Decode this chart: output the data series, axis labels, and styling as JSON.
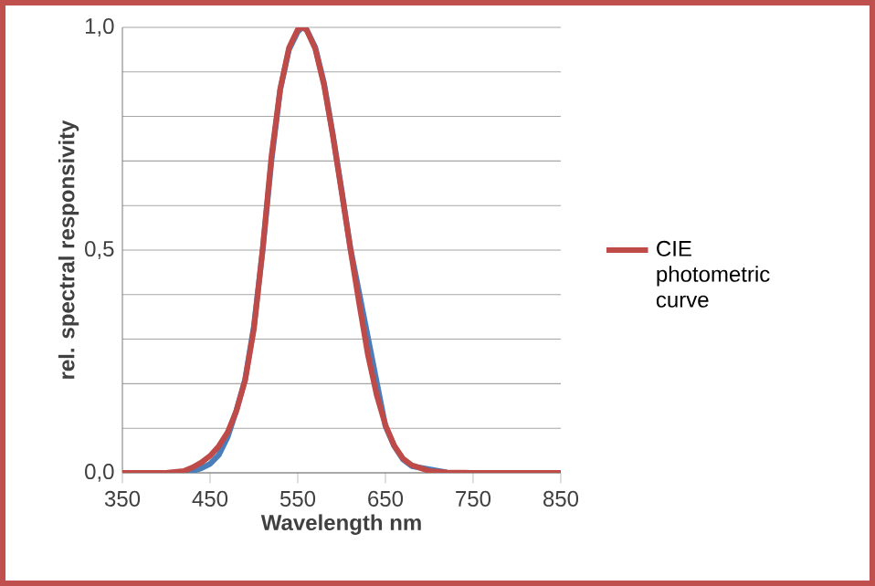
{
  "chart_data": {
    "type": "line",
    "xlabel": "Wavelength nm",
    "ylabel": "rel. spectral responsivity",
    "xlim": [
      350,
      850
    ],
    "xticks": [
      350,
      450,
      550,
      650,
      750,
      850
    ],
    "ylim": [
      0,
      1
    ],
    "yticks": [
      {
        "value": 0,
        "label": "0,0"
      },
      {
        "value": 0.1,
        "label": null
      },
      {
        "value": 0.2,
        "label": null
      },
      {
        "value": 0.3,
        "label": null
      },
      {
        "value": 0.4,
        "label": null
      },
      {
        "value": 0.5,
        "label": "0,5"
      },
      {
        "value": 0.6,
        "label": null
      },
      {
        "value": 0.7,
        "label": null
      },
      {
        "value": 0.8,
        "label": null
      },
      {
        "value": 0.9,
        "label": null
      },
      {
        "value": 1,
        "label": "1,0"
      }
    ],
    "grid": "y",
    "legend": "right",
    "marker": "none",
    "line_style": "solid",
    "series": [
      {
        "color": "#4a7ebb",
        "x": [
          350,
          400,
          420,
          430,
          440,
          450,
          460,
          470,
          480,
          490,
          500,
          510,
          520,
          530,
          540,
          550,
          555,
          560,
          570,
          580,
          590,
          600,
          610,
          620,
          630,
          640,
          650,
          660,
          670,
          680,
          700,
          720
        ],
        "values": [
          0,
          0,
          0.001,
          0.004,
          0.01,
          0.02,
          0.04,
          0.08,
          0.14,
          0.21,
          0.33,
          0.5,
          0.7,
          0.86,
          0.95,
          0.99,
          1.0,
          0.995,
          0.955,
          0.875,
          0.76,
          0.635,
          0.505,
          null,
          null,
          null,
          0.105,
          0.06,
          0.03,
          0.015,
          null,
          0.001
        ]
      },
      {
        "name": "CIE photometric curve",
        "color": "#be4b48",
        "x": [
          350,
          400,
          420,
          430,
          440,
          450,
          460,
          470,
          480,
          490,
          500,
          510,
          520,
          530,
          540,
          550,
          555,
          560,
          570,
          580,
          590,
          600,
          610,
          620,
          630,
          640,
          650,
          660,
          670,
          680,
          700,
          720,
          750,
          850
        ],
        "values": [
          0,
          0,
          0.004,
          0.012,
          0.023,
          0.038,
          0.06,
          0.091,
          0.139,
          0.208,
          0.323,
          0.503,
          0.71,
          0.862,
          0.954,
          0.995,
          1.0,
          0.995,
          0.952,
          0.87,
          0.757,
          0.631,
          0.503,
          0.381,
          0.265,
          0.175,
          0.107,
          0.061,
          0.032,
          0.017,
          0.004,
          0.001,
          0,
          0
        ]
      }
    ]
  }
}
